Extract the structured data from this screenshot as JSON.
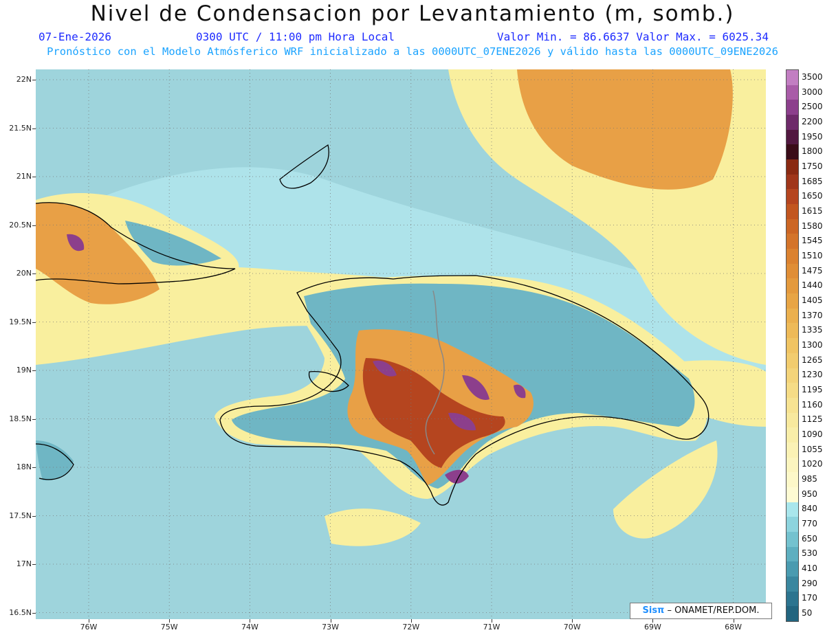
{
  "title": "Nivel de Condensacion por Levantamiento (m, somb.)",
  "header": {
    "date": "07-Ene-2026",
    "time": "0300 UTC / 11:00 pm Hora Local",
    "min_max": "Valor Min. = 86.6637  Valor Max. = 6025.34",
    "subtitle": "Pronóstico con el Modelo Atmósferico WRF inicializado a las 0000UTC_07ENE2026 y válido hasta las  0000UTC_09ENE2026"
  },
  "axes": {
    "lat_labels": [
      "22N",
      "21.5N",
      "21N",
      "20.5N",
      "20N",
      "19.5N",
      "19N",
      "18.5N",
      "18N",
      "17.5N",
      "17N",
      "16.5N"
    ],
    "lon_labels": [
      "76W",
      "75W",
      "74W",
      "73W",
      "72W",
      "71W",
      "70W",
      "69W",
      "68W"
    ]
  },
  "legend": {
    "labels": [
      "3500",
      "3000",
      "2500",
      "2200",
      "1950",
      "1800",
      "1750",
      "1685",
      "1650",
      "1615",
      "1580",
      "1545",
      "1510",
      "1475",
      "1440",
      "1405",
      "1370",
      "1335",
      "1300",
      "1265",
      "1230",
      "1195",
      "1160",
      "1125",
      "1090",
      "1055",
      "1020",
      "985",
      "950",
      "840",
      "770",
      "650",
      "530",
      "410",
      "290",
      "170",
      "50"
    ],
    "colors": [
      "#c27ec2",
      "#a95ca8",
      "#8c3f8c",
      "#6e2a6a",
      "#521840",
      "#3a0c18",
      "#8a2a12",
      "#a0361a",
      "#b5451f",
      "#c2561f",
      "#cc6624",
      "#d4742a",
      "#db8230",
      "#e08e36",
      "#e49a3d",
      "#e8a545",
      "#ebb04e",
      "#eeba58",
      "#f0c463",
      "#f2cc6e",
      "#f4d47a",
      "#f6dc86",
      "#f7e392",
      "#f8e99e",
      "#f9eea9",
      "#fbf2b5",
      "#fcf5bf",
      "#fdf8c9",
      "#fefbd3",
      "#a9e6ec",
      "#8dd4de",
      "#74c2cf",
      "#5eafc0",
      "#4a9bb0",
      "#3a879f",
      "#2c748f",
      "#22657f"
    ],
    "credit_logo": "Sisπ",
    "credit_text": " – ONAMET/REP.DOM."
  },
  "map_colors": {
    "ocean": "#9ed4dc",
    "light_cyan": "#aee3ea",
    "yellow": "#f9ef9e",
    "orange": "#e8a046",
    "brown": "#b5451f",
    "purple": "#8c3f8c",
    "teal": "#6fb6c4"
  }
}
